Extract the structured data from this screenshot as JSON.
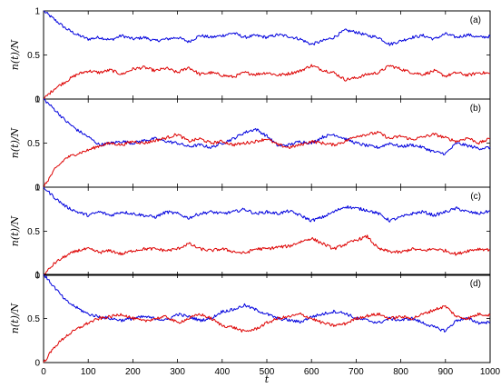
{
  "figure": {
    "x_axis_label": "t",
    "y_axis_label": "n(t)/N"
  },
  "chart_data": [
    {
      "type": "line",
      "panel_label": "(a)",
      "xlabel": "t",
      "ylabel": "n(t)/N",
      "xlim": [
        0,
        1000
      ],
      "ylim": [
        0,
        1
      ],
      "yticks": [
        "0",
        "0.5",
        "1"
      ],
      "x": [
        0,
        25,
        50,
        75,
        100,
        125,
        150,
        175,
        200,
        225,
        250,
        275,
        300,
        325,
        350,
        375,
        400,
        425,
        450,
        475,
        500,
        525,
        550,
        575,
        600,
        625,
        650,
        675,
        700,
        725,
        750,
        775,
        800,
        825,
        850,
        875,
        900,
        925,
        950,
        975,
        1000
      ],
      "series": [
        {
          "color": "#0000dd",
          "values": [
            1.0,
            0.9,
            0.8,
            0.73,
            0.68,
            0.7,
            0.67,
            0.72,
            0.68,
            0.7,
            0.66,
            0.68,
            0.7,
            0.65,
            0.72,
            0.7,
            0.72,
            0.75,
            0.7,
            0.72,
            0.7,
            0.73,
            0.71,
            0.68,
            0.62,
            0.66,
            0.7,
            0.78,
            0.76,
            0.72,
            0.7,
            0.62,
            0.66,
            0.7,
            0.72,
            0.68,
            0.74,
            0.7,
            0.73,
            0.7,
            0.71
          ]
        },
        {
          "color": "#dd0000",
          "values": [
            0.0,
            0.12,
            0.2,
            0.28,
            0.32,
            0.3,
            0.33,
            0.28,
            0.34,
            0.36,
            0.32,
            0.35,
            0.3,
            0.36,
            0.28,
            0.3,
            0.27,
            0.25,
            0.3,
            0.28,
            0.3,
            0.27,
            0.29,
            0.32,
            0.38,
            0.33,
            0.3,
            0.22,
            0.24,
            0.28,
            0.3,
            0.38,
            0.34,
            0.3,
            0.28,
            0.32,
            0.26,
            0.3,
            0.27,
            0.3,
            0.29
          ]
        }
      ]
    },
    {
      "type": "line",
      "panel_label": "(b)",
      "xlabel": "t",
      "ylabel": "n(t)/N",
      "xlim": [
        0,
        1000
      ],
      "ylim": [
        0,
        1
      ],
      "yticks": [
        "0",
        "0.5",
        "1"
      ],
      "x": [
        0,
        25,
        50,
        75,
        100,
        125,
        150,
        175,
        200,
        225,
        250,
        275,
        300,
        325,
        350,
        375,
        400,
        425,
        450,
        475,
        500,
        525,
        550,
        575,
        600,
        625,
        650,
        675,
        700,
        725,
        750,
        775,
        800,
        825,
        850,
        875,
        900,
        925,
        950,
        975,
        1000
      ],
      "series": [
        {
          "color": "#0000dd",
          "values": [
            1.0,
            0.88,
            0.75,
            0.65,
            0.57,
            0.48,
            0.5,
            0.52,
            0.5,
            0.53,
            0.55,
            0.52,
            0.5,
            0.46,
            0.48,
            0.45,
            0.5,
            0.55,
            0.62,
            0.66,
            0.58,
            0.47,
            0.48,
            0.52,
            0.5,
            0.57,
            0.6,
            0.55,
            0.5,
            0.47,
            0.45,
            0.5,
            0.46,
            0.48,
            0.45,
            0.4,
            0.38,
            0.5,
            0.47,
            0.44,
            0.45
          ]
        },
        {
          "color": "#dd0000",
          "values": [
            0.0,
            0.2,
            0.33,
            0.38,
            0.42,
            0.47,
            0.5,
            0.48,
            0.52,
            0.5,
            0.53,
            0.56,
            0.6,
            0.52,
            0.55,
            0.5,
            0.52,
            0.48,
            0.5,
            0.52,
            0.55,
            0.48,
            0.45,
            0.48,
            0.52,
            0.5,
            0.48,
            0.52,
            0.58,
            0.6,
            0.62,
            0.55,
            0.58,
            0.54,
            0.57,
            0.6,
            0.56,
            0.52,
            0.56,
            0.5,
            0.55
          ]
        }
      ]
    },
    {
      "type": "line",
      "panel_label": "(c)",
      "xlabel": "t",
      "ylabel": "n(t)/N",
      "xlim": [
        0,
        1000
      ],
      "ylim": [
        0,
        1
      ],
      "yticks": [
        "0",
        "0.5",
        "1"
      ],
      "x": [
        0,
        25,
        50,
        75,
        100,
        125,
        150,
        175,
        200,
        225,
        250,
        275,
        300,
        325,
        350,
        375,
        400,
        425,
        450,
        475,
        500,
        525,
        550,
        575,
        600,
        625,
        650,
        675,
        700,
        725,
        750,
        775,
        800,
        825,
        850,
        875,
        900,
        925,
        950,
        975,
        1000
      ],
      "series": [
        {
          "color": "#0000dd",
          "values": [
            1.0,
            0.88,
            0.78,
            0.72,
            0.68,
            0.72,
            0.68,
            0.72,
            0.7,
            0.68,
            0.66,
            0.72,
            0.7,
            0.65,
            0.7,
            0.72,
            0.7,
            0.72,
            0.75,
            0.7,
            0.72,
            0.7,
            0.73,
            0.68,
            0.62,
            0.66,
            0.72,
            0.78,
            0.76,
            0.74,
            0.7,
            0.62,
            0.66,
            0.7,
            0.72,
            0.68,
            0.72,
            0.76,
            0.72,
            0.7,
            0.73
          ]
        },
        {
          "color": "#dd0000",
          "values": [
            0.0,
            0.14,
            0.22,
            0.28,
            0.3,
            0.26,
            0.28,
            0.24,
            0.28,
            0.3,
            0.3,
            0.28,
            0.3,
            0.36,
            0.3,
            0.28,
            0.3,
            0.27,
            0.25,
            0.3,
            0.3,
            0.32,
            0.33,
            0.38,
            0.42,
            0.36,
            0.3,
            0.35,
            0.4,
            0.44,
            0.3,
            0.27,
            0.26,
            0.3,
            0.28,
            0.3,
            0.28,
            0.24,
            0.28,
            0.3,
            0.29
          ]
        }
      ]
    },
    {
      "type": "line",
      "panel_label": "(d)",
      "xlabel": "t",
      "ylabel": "n(t)/N",
      "xlim": [
        0,
        1000
      ],
      "ylim": [
        0,
        1
      ],
      "yticks": [
        "0",
        "0.5",
        "1"
      ],
      "xticks": [
        "0",
        "100",
        "200",
        "300",
        "400",
        "500",
        "600",
        "700",
        "800",
        "900",
        "1000"
      ],
      "x": [
        0,
        25,
        50,
        75,
        100,
        125,
        150,
        175,
        200,
        225,
        250,
        275,
        300,
        325,
        350,
        375,
        400,
        425,
        450,
        475,
        500,
        525,
        550,
        575,
        600,
        625,
        650,
        675,
        700,
        725,
        750,
        775,
        800,
        825,
        850,
        875,
        900,
        925,
        950,
        975,
        1000
      ],
      "series": [
        {
          "color": "#0000dd",
          "values": [
            1.0,
            0.85,
            0.7,
            0.62,
            0.55,
            0.52,
            0.5,
            0.48,
            0.5,
            0.52,
            0.5,
            0.48,
            0.55,
            0.52,
            0.48,
            0.5,
            0.58,
            0.6,
            0.65,
            0.6,
            0.55,
            0.5,
            0.48,
            0.46,
            0.52,
            0.55,
            0.58,
            0.56,
            0.5,
            0.48,
            0.45,
            0.5,
            0.48,
            0.5,
            0.45,
            0.4,
            0.36,
            0.48,
            0.5,
            0.45,
            0.46
          ]
        },
        {
          "color": "#dd0000",
          "values": [
            0.0,
            0.18,
            0.3,
            0.38,
            0.45,
            0.5,
            0.52,
            0.55,
            0.5,
            0.47,
            0.5,
            0.52,
            0.45,
            0.5,
            0.55,
            0.5,
            0.42,
            0.4,
            0.35,
            0.38,
            0.45,
            0.5,
            0.52,
            0.55,
            0.5,
            0.45,
            0.42,
            0.44,
            0.5,
            0.53,
            0.55,
            0.5,
            0.52,
            0.5,
            0.55,
            0.6,
            0.64,
            0.52,
            0.5,
            0.55,
            0.54
          ]
        }
      ]
    }
  ]
}
